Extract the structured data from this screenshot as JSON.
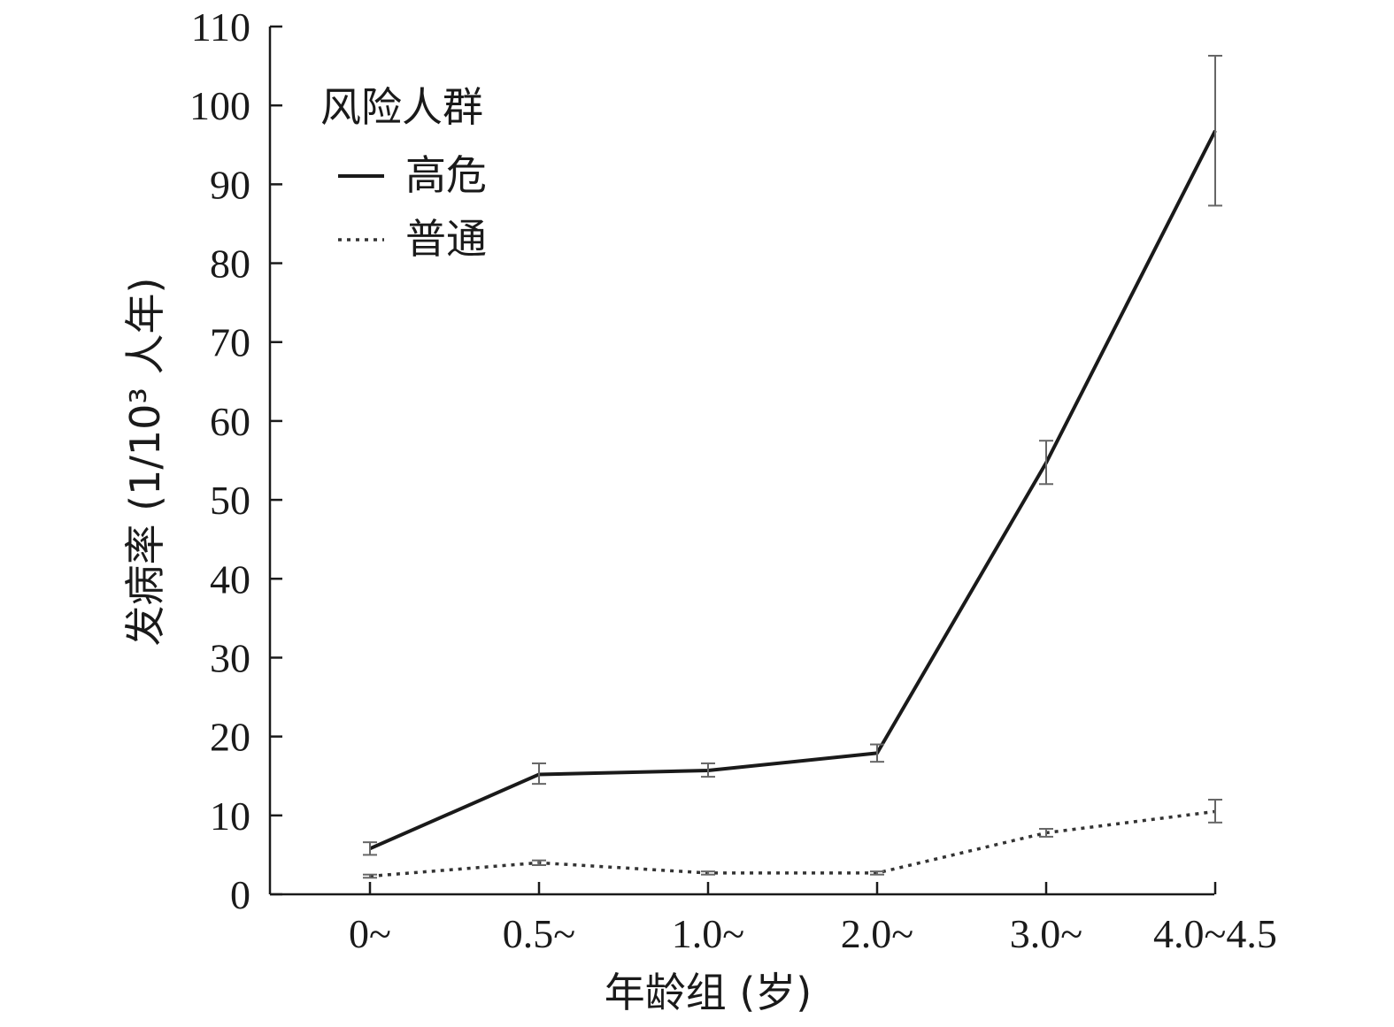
{
  "chart_data": {
    "type": "line",
    "xlabel": "年龄组 (岁)",
    "ylabel": "发病率 (1/10³ 人年)",
    "categories": [
      "0~",
      "0.5~",
      "1.0~",
      "2.0~",
      "3.0~",
      "4.0~4.5"
    ],
    "ylim": [
      0,
      110
    ],
    "yticks": [
      0,
      10,
      20,
      30,
      40,
      50,
      60,
      70,
      80,
      90,
      100,
      110
    ],
    "grid": false,
    "legend": {
      "title": "风险人群",
      "placement": "top-left"
    },
    "series": [
      {
        "name": "高危",
        "style": "solid",
        "color": "#1a1a1a",
        "values": [
          5.8,
          15.2,
          15.7,
          17.9,
          54.7,
          96.8
        ],
        "error_low": [
          5.0,
          14.0,
          14.9,
          16.8,
          52.0,
          87.3
        ],
        "error_high": [
          6.6,
          16.6,
          16.6,
          19.0,
          57.5,
          106.3
        ]
      },
      {
        "name": "普通",
        "style": "dotted",
        "color": "#333333",
        "values": [
          2.3,
          4.0,
          2.7,
          2.7,
          7.8,
          10.5
        ],
        "error_low": [
          2.1,
          3.7,
          2.5,
          2.5,
          7.3,
          9.1
        ],
        "error_high": [
          2.5,
          4.3,
          2.9,
          2.9,
          8.3,
          12.0
        ]
      }
    ]
  }
}
